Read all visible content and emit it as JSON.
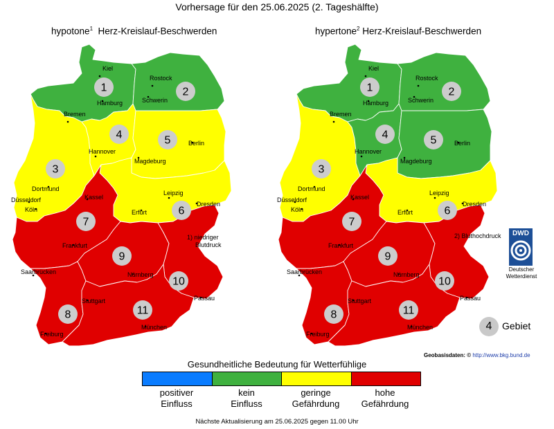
{
  "title": "Vorhersage für den 25.06.2025 (2. Tageshälfte)",
  "maps": {
    "left": {
      "prefix": "hypotone",
      "sup": "1",
      "suffix": "Herz-Kreislauf-Beschwerden",
      "regions": [
        {
          "id": "1",
          "risk": "kein Einfluss",
          "color": "#3fb13f"
        },
        {
          "id": "2",
          "risk": "kein Einfluss",
          "color": "#3fb13f"
        },
        {
          "id": "3",
          "risk": "geringe Gefährdung",
          "color": "#ffff00"
        },
        {
          "id": "4",
          "risk": "geringe Gefährdung",
          "color": "#ffff00"
        },
        {
          "id": "5",
          "risk": "geringe Gefährdung",
          "color": "#ffff00"
        },
        {
          "id": "6",
          "risk": "geringe Gefährdung",
          "color": "#ffff00"
        },
        {
          "id": "7",
          "risk": "hohe Gefährdung",
          "color": "#e00000"
        },
        {
          "id": "8",
          "risk": "hohe Gefährdung",
          "color": "#e00000"
        },
        {
          "id": "9",
          "risk": "hohe Gefährdung",
          "color": "#e00000"
        },
        {
          "id": "10",
          "risk": "hohe Gefährdung",
          "color": "#e00000"
        },
        {
          "id": "11",
          "risk": "hohe Gefährdung",
          "color": "#e00000"
        }
      ],
      "note_line1": "1) niedriger",
      "note_line2": "Blutdruck"
    },
    "right": {
      "prefix": "hypertone",
      "sup": "2",
      "suffix": "Herz-Kreislauf-Beschwerden",
      "regions": [
        {
          "id": "1",
          "risk": "kein Einfluss",
          "color": "#3fb13f"
        },
        {
          "id": "2",
          "risk": "kein Einfluss",
          "color": "#3fb13f"
        },
        {
          "id": "3",
          "risk": "geringe Gefährdung",
          "color": "#ffff00"
        },
        {
          "id": "4",
          "risk": "kein Einfluss",
          "color": "#3fb13f"
        },
        {
          "id": "5",
          "risk": "kein Einfluss",
          "color": "#3fb13f"
        },
        {
          "id": "6",
          "risk": "geringe Gefährdung",
          "color": "#ffff00"
        },
        {
          "id": "7",
          "risk": "hohe Gefährdung",
          "color": "#e00000"
        },
        {
          "id": "8",
          "risk": "hohe Gefährdung",
          "color": "#e00000"
        },
        {
          "id": "9",
          "risk": "hohe Gefährdung",
          "color": "#e00000"
        },
        {
          "id": "10",
          "risk": "hohe Gefährdung",
          "color": "#e00000"
        },
        {
          "id": "11",
          "risk": "hohe Gefährdung",
          "color": "#e00000"
        }
      ],
      "note": "2) Bluthochdruck"
    }
  },
  "cities": [
    "Kiel",
    "Rostock",
    "Hamburg",
    "Schwerin",
    "Bremen",
    "Hannover",
    "Berlin",
    "Magdeburg",
    "Dortmund",
    "Düsseldorf",
    "Köln",
    "Kassel",
    "Leipzig",
    "Dresden",
    "Erfurt",
    "Frankfurt",
    "Saarbrücken",
    "Nürnberg",
    "Passau",
    "Stuttgart",
    "München",
    "Freiburg"
  ],
  "legend": {
    "title": "Gesundheitliche Bedeutung für Wetterfühlige",
    "colors": [
      "#0a7cff",
      "#3fb13f",
      "#ffff00",
      "#e00000"
    ],
    "items": [
      {
        "line1": "positiver",
        "line2": "Einfluss"
      },
      {
        "line1": "kein",
        "line2": "Einfluss"
      },
      {
        "line1": "geringe",
        "line2": "Gefährdung"
      },
      {
        "line1": "hohe",
        "line2": "Gefährdung"
      }
    ]
  },
  "region_key": {
    "number": "4",
    "label": "Gebiet"
  },
  "dwd": {
    "logo": "DWD",
    "line1": "Deutscher",
    "line2": "Wetterdienst",
    "icon": "dwd-spiral-logo"
  },
  "geodata": {
    "label": "Geobasisdaten: © ",
    "link": "http://www.bkg.bund.de"
  },
  "footer": "Nächste Aktualisierung am 25.06.2025 gegen 11.00 Uhr"
}
